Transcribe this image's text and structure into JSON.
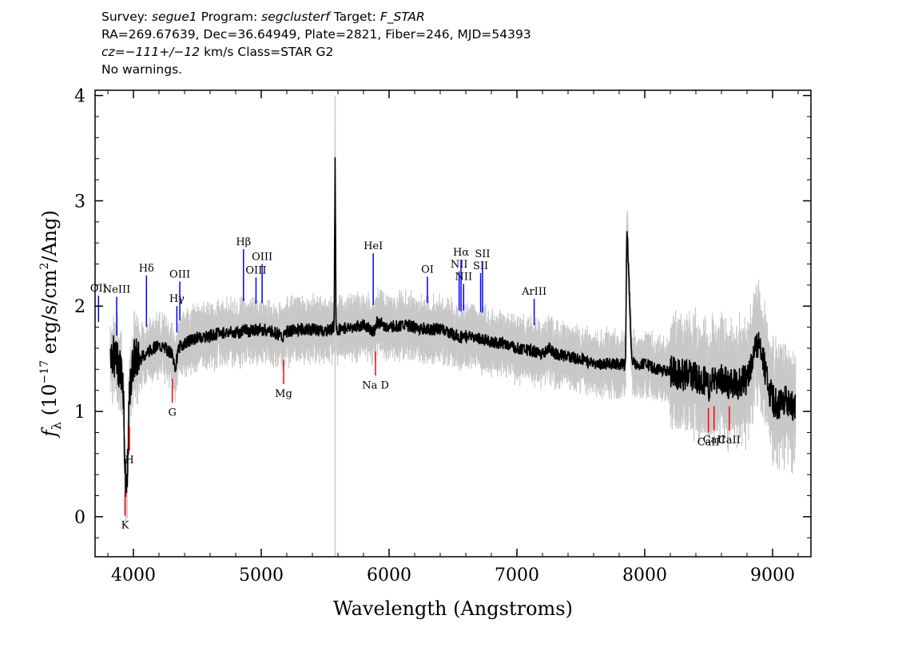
{
  "header": {
    "line1": {
      "survey_label": "Survey:",
      "survey": "segue1",
      "program_label": "Program:",
      "program": "segclusterf",
      "target_label": "Target:",
      "target": "F_STAR"
    },
    "line2": "RA=269.67639, Dec=36.64949, Plate=2821, Fiber=246, MJD=54393",
    "line3": {
      "cz": "cz=−111+/−12",
      "rest": " km/s Class=STAR G2"
    },
    "line4": "No warnings."
  },
  "chart_data": {
    "type": "line",
    "xlabel": "Wavelength (Angstroms)",
    "ylabel_prefix": "f",
    "ylabel_sub": "λ",
    "ylabel_mid": " (10",
    "ylabel_exp": "−17",
    "ylabel_units": " erg/s/cm",
    "ylabel_exp2": "2",
    "ylabel_end": "/Ang)",
    "xlim": [
      3700,
      9300
    ],
    "ylim": [
      -0.38,
      4.05
    ],
    "xticks": [
      4000,
      5000,
      6000,
      7000,
      8000,
      9000
    ],
    "yticks": [
      0,
      1,
      2,
      3,
      4
    ],
    "xtick_labels": [
      "4000",
      "5000",
      "6000",
      "7000",
      "8000",
      "9000"
    ],
    "ytick_labels": [
      "0",
      "1",
      "2",
      "3",
      "4"
    ],
    "series": [
      {
        "role": "flux",
        "color": "#000000",
        "x": [
          3820,
          3850,
          3880,
          3900,
          3920,
          3935,
          3950,
          3965,
          3980,
          4000,
          4050,
          4100,
          4150,
          4200,
          4250,
          4300,
          4330,
          4350,
          4400,
          4500,
          4600,
          4700,
          4800,
          4850,
          4861,
          4900,
          5000,
          5100,
          5170,
          5200,
          5300,
          5400,
          5500,
          5570,
          5578,
          5585,
          5600,
          5700,
          5800,
          5890,
          5900,
          6000,
          6100,
          6200,
          6300,
          6400,
          6500,
          6563,
          6600,
          6700,
          6800,
          6900,
          7000,
          7100,
          7200,
          7250,
          7300,
          7400,
          7500,
          7600,
          7700,
          7800,
          7850,
          7860,
          7900,
          8000,
          8100,
          8200,
          8300,
          8400,
          8500,
          8600,
          8700,
          8800,
          8850,
          8900,
          8950,
          9000,
          9050,
          9100,
          9150,
          9180
        ],
        "y": [
          1.6,
          1.5,
          1.45,
          1.4,
          1.3,
          0.4,
          0.2,
          1.0,
          1.3,
          1.5,
          1.5,
          1.55,
          1.6,
          1.62,
          1.6,
          1.55,
          1.4,
          1.6,
          1.65,
          1.7,
          1.72,
          1.75,
          1.75,
          1.75,
          1.8,
          1.76,
          1.78,
          1.76,
          1.7,
          1.76,
          1.78,
          1.78,
          1.76,
          1.8,
          3.4,
          1.8,
          1.78,
          1.8,
          1.82,
          1.75,
          1.85,
          1.8,
          1.82,
          1.8,
          1.78,
          1.78,
          1.74,
          1.7,
          1.72,
          1.7,
          1.66,
          1.65,
          1.6,
          1.58,
          1.55,
          1.6,
          1.55,
          1.52,
          1.5,
          1.45,
          1.45,
          1.45,
          1.45,
          2.8,
          1.45,
          1.45,
          1.4,
          1.38,
          1.35,
          1.32,
          1.25,
          1.3,
          1.25,
          1.3,
          1.5,
          1.7,
          1.3,
          1.1,
          1.05,
          1.1,
          1.05,
          1.1
        ]
      },
      {
        "role": "sky",
        "color": "#c8c8c8",
        "x": [
          5578
        ],
        "y": [
          4.0
        ]
      }
    ],
    "emission_lines": [
      {
        "label": "OII",
        "x": 3727
      },
      {
        "label": "NeIII",
        "x": 3869
      },
      {
        "label": "Hδ",
        "x": 4102
      },
      {
        "label": "Hγ",
        "x": 4340
      },
      {
        "label": "OIII",
        "x": 4363
      },
      {
        "label": "Hβ",
        "x": 4861
      },
      {
        "label": "OIII",
        "x": 4959
      },
      {
        "label": "OIII",
        "x": 5007
      },
      {
        "label": "HeI",
        "x": 5876
      },
      {
        "label": "OI",
        "x": 6300
      },
      {
        "label": "NII",
        "x": 6548
      },
      {
        "label": "Hα",
        "x": 6563
      },
      {
        "label": "NII",
        "x": 6583
      },
      {
        "label": "SII",
        "x": 6716
      },
      {
        "label": "SII",
        "x": 6731
      },
      {
        "label": "ArIII",
        "x": 7135
      }
    ],
    "absorption_lines": [
      {
        "label": "K",
        "x": 3934
      },
      {
        "label": "H",
        "x": 3969
      },
      {
        "label": "G",
        "x": 4304
      },
      {
        "label": "Mg",
        "x": 5175
      },
      {
        "label": "Na D",
        "x": 5894
      },
      {
        "label": "CaII",
        "x": 8498
      },
      {
        "label": "CaII",
        "x": 8542
      },
      {
        "label": "CaII",
        "x": 8662
      }
    ],
    "emission_color": "#0000ff",
    "absorption_color": "#ff0000",
    "noise_color": "#c8c8c8"
  }
}
